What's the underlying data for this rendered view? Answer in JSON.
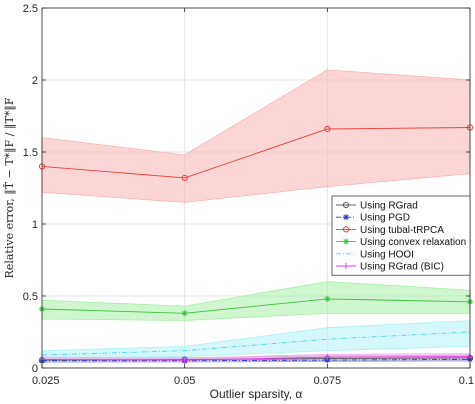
{
  "chart_data": {
    "type": "line",
    "x": [
      0.025,
      0.05,
      0.075,
      0.1
    ],
    "x_tick_labels": [
      "0.025",
      "0.05",
      "0.075",
      "0.1"
    ],
    "y_tick_labels": [
      "0",
      "0.5",
      "1",
      "1.5",
      "2",
      "2.5"
    ],
    "xlim": [
      0.025,
      0.1
    ],
    "ylim": [
      0,
      2.5
    ],
    "xlabel": "Outlier sparsity, α",
    "ylabel": "Relative error, ‖T̂ − T*‖F / ‖T*‖F",
    "grid": true,
    "legend_position": "right",
    "series": [
      {
        "name": "Using RGrad",
        "color": "#606060",
        "marker": "circle",
        "dash": "solid",
        "values": [
          0.055,
          0.058,
          0.065,
          0.07
        ],
        "band_lower": [
          0.04,
          0.045,
          0.048,
          0.05
        ],
        "band_upper": [
          0.07,
          0.072,
          0.085,
          0.09
        ],
        "band_color": "#b0b0b0"
      },
      {
        "name": "Using PGD",
        "color": "#2f3bd6",
        "marker": "star",
        "dash": "dashdot",
        "values": [
          0.05,
          0.05,
          0.055,
          0.06
        ],
        "band_lower": [
          0.04,
          0.042,
          0.045,
          0.048
        ],
        "band_upper": [
          0.06,
          0.06,
          0.068,
          0.072
        ],
        "band_color": "#a8b0f0"
      },
      {
        "name": "Using tubal-tRPCA",
        "color": "#e8403a",
        "marker": "circle",
        "dash": "solid",
        "values": [
          1.4,
          1.32,
          1.66,
          1.67
        ],
        "band_lower": [
          1.22,
          1.15,
          1.26,
          1.35
        ],
        "band_upper": [
          1.6,
          1.48,
          2.07,
          2.0
        ],
        "band_color": "#f9b4b4"
      },
      {
        "name": "Using convex relaxation",
        "color": "#3ec43e",
        "marker": "star",
        "dash": "solid",
        "values": [
          0.41,
          0.38,
          0.48,
          0.46
        ],
        "band_lower": [
          0.34,
          0.33,
          0.38,
          0.38
        ],
        "band_upper": [
          0.47,
          0.43,
          0.6,
          0.54
        ],
        "band_color": "#a8eea8"
      },
      {
        "name": "Using HOOI",
        "color": "#4fd6e8",
        "marker": "none",
        "dash": "dashdot",
        "values": [
          0.09,
          0.12,
          0.2,
          0.25
        ],
        "band_lower": [
          0.07,
          0.08,
          0.12,
          0.15
        ],
        "band_upper": [
          0.12,
          0.15,
          0.28,
          0.33
        ],
        "band_color": "#b0f0f6"
      },
      {
        "name": "Using RGrad (BIC)",
        "color": "#e040e0",
        "marker": "plus",
        "dash": "solid",
        "values": [
          0.06,
          0.055,
          0.075,
          0.08
        ],
        "band_lower": [
          0.045,
          0.045,
          0.06,
          0.062
        ],
        "band_upper": [
          0.075,
          0.068,
          0.095,
          0.1
        ],
        "band_color": "#f3b0f3"
      }
    ]
  }
}
